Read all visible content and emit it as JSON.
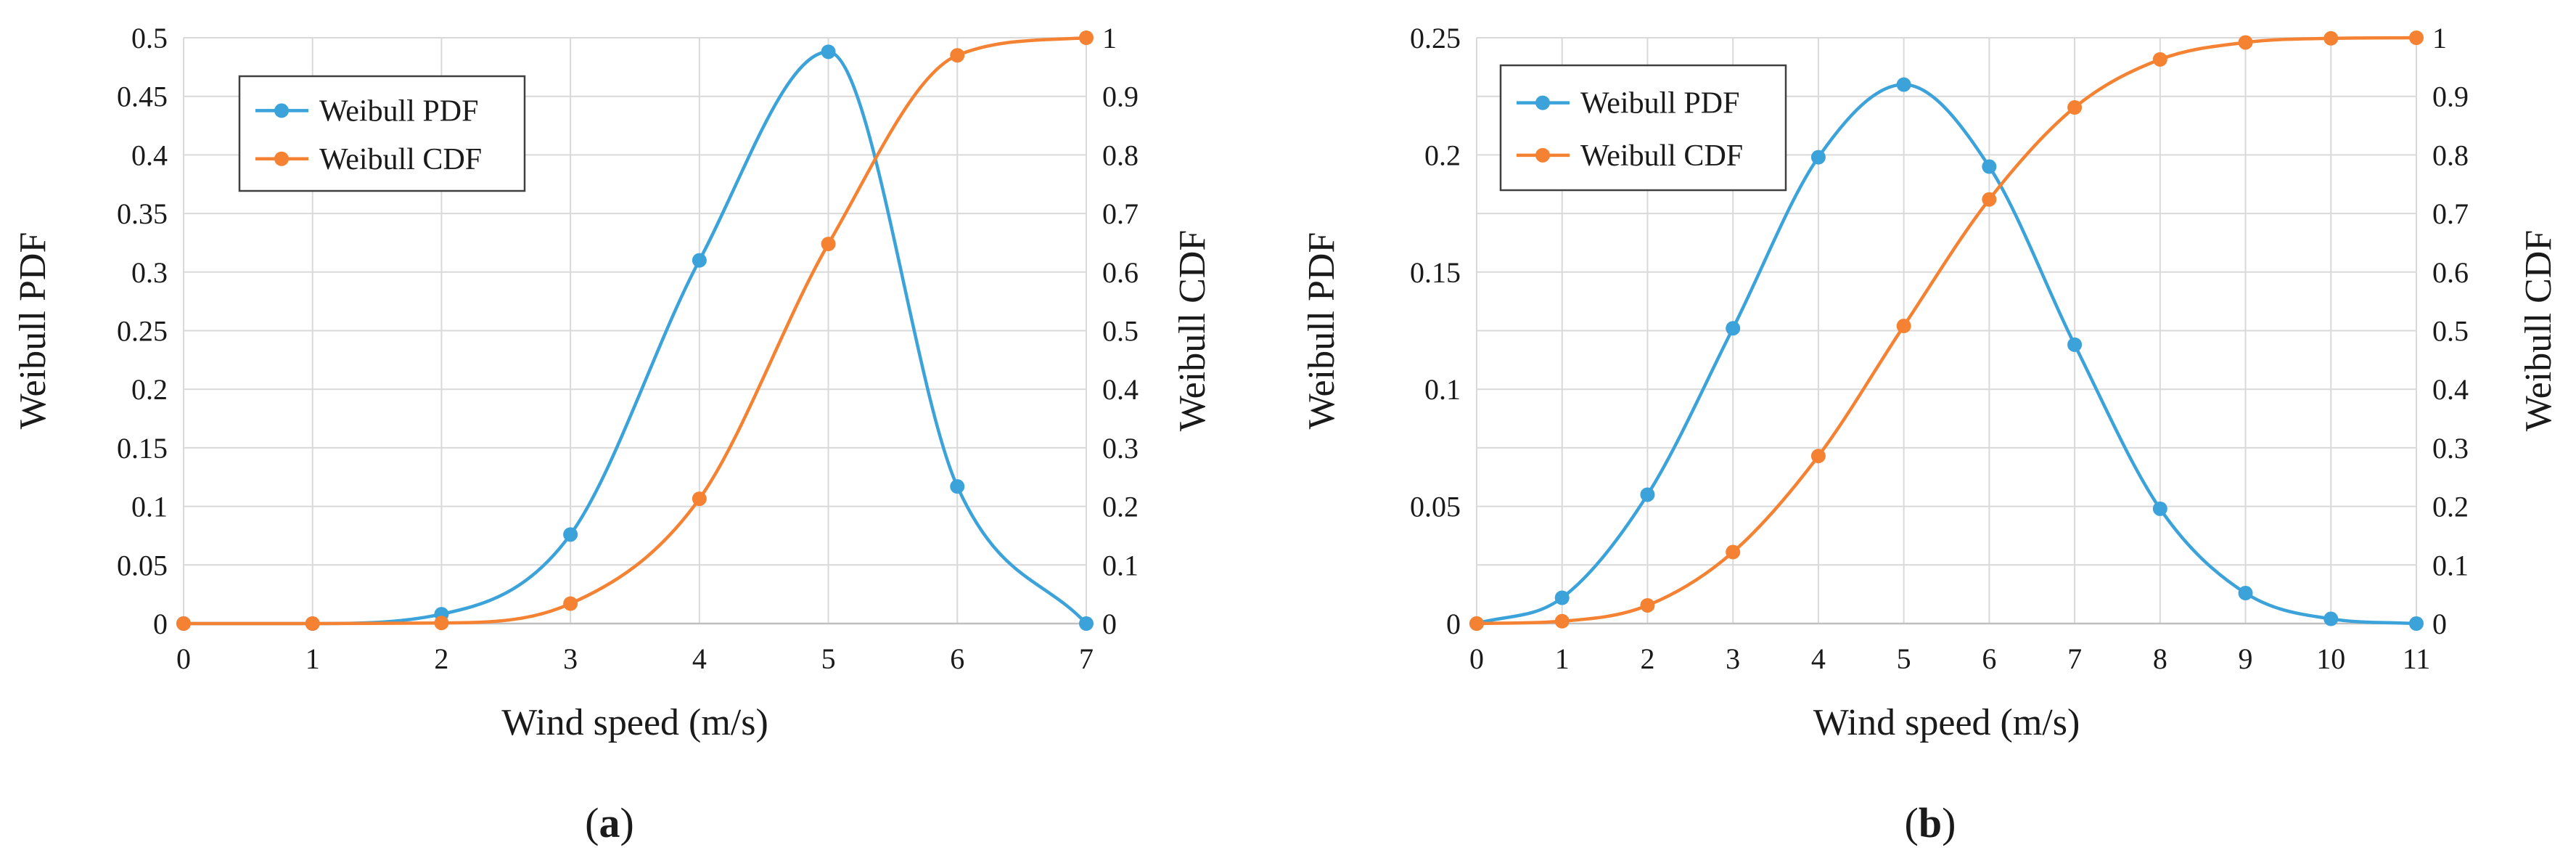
{
  "chart_data": [
    {
      "type": "line",
      "panel_label": "a",
      "xlabel": "Wind speed (m/s)",
      "ylabel_left": "Weibull PDF",
      "ylabel_right": "Weibull CDF",
      "xlim": [
        0,
        7
      ],
      "ylim_left": [
        0,
        0.5
      ],
      "ylim_right": [
        0,
        1
      ],
      "xticks": [
        "0",
        "1",
        "2",
        "3",
        "4",
        "5",
        "6",
        "7"
      ],
      "yticks_left": [
        "0",
        "0.05",
        "0.1",
        "0.15",
        "0.2",
        "0.25",
        "0.3",
        "0.35",
        "0.4",
        "0.45",
        "0.5"
      ],
      "yticks_right": [
        "0",
        "0.1",
        "0.2",
        "0.3",
        "0.4",
        "0.5",
        "0.6",
        "0.7",
        "0.8",
        "0.9",
        "1"
      ],
      "grid": true,
      "legend_position": "top-left",
      "series": [
        {
          "name": "Weibull PDF",
          "axis": "left",
          "color": "#3ba3d9",
          "x": [
            0,
            1,
            2,
            3,
            4,
            5,
            6,
            7
          ],
          "values": [
            0,
            0,
            0.008,
            0.076,
            0.31,
            0.488,
            0.117,
            0
          ]
        },
        {
          "name": "Weibull CDF",
          "axis": "right",
          "color": "#f58232",
          "x": [
            0,
            1,
            2,
            3,
            4,
            5,
            6,
            7
          ],
          "values": [
            0,
            0,
            0.001,
            0.034,
            0.213,
            0.648,
            0.97,
            1.0
          ]
        }
      ]
    },
    {
      "type": "line",
      "panel_label": "b",
      "xlabel": "Wind speed (m/s)",
      "ylabel_left": "Weibull PDF",
      "ylabel_right": "Weibull CDF",
      "xlim": [
        0,
        11
      ],
      "ylim_left": [
        0,
        0.25
      ],
      "ylim_right": [
        0,
        1
      ],
      "xticks": [
        "0",
        "1",
        "2",
        "3",
        "4",
        "5",
        "6",
        "7",
        "8",
        "9",
        "10",
        "11"
      ],
      "yticks_left": [
        "0",
        "0.05",
        "0.1",
        "0.15",
        "0.2",
        "0.25"
      ],
      "yticks_right": [
        "0",
        "0.1",
        "0.2",
        "0.3",
        "0.4",
        "0.5",
        "0.6",
        "0.7",
        "0.8",
        "0.9",
        "1"
      ],
      "grid": true,
      "legend_position": "top-left",
      "series": [
        {
          "name": "Weibull PDF",
          "axis": "left",
          "color": "#3ba3d9",
          "x": [
            0,
            1,
            2,
            3,
            4,
            5,
            6,
            7,
            8,
            9,
            10,
            11
          ],
          "values": [
            0,
            0.011,
            0.055,
            0.126,
            0.199,
            0.23,
            0.195,
            0.119,
            0.049,
            0.013,
            0.002,
            0
          ]
        },
        {
          "name": "Weibull CDF",
          "axis": "right",
          "color": "#f58232",
          "x": [
            0,
            1,
            2,
            3,
            4,
            5,
            6,
            7,
            8,
            9,
            10,
            11
          ],
          "values": [
            0,
            0.004,
            0.031,
            0.122,
            0.286,
            0.508,
            0.724,
            0.881,
            0.963,
            0.992,
            0.999,
            1.0
          ]
        }
      ]
    }
  ]
}
